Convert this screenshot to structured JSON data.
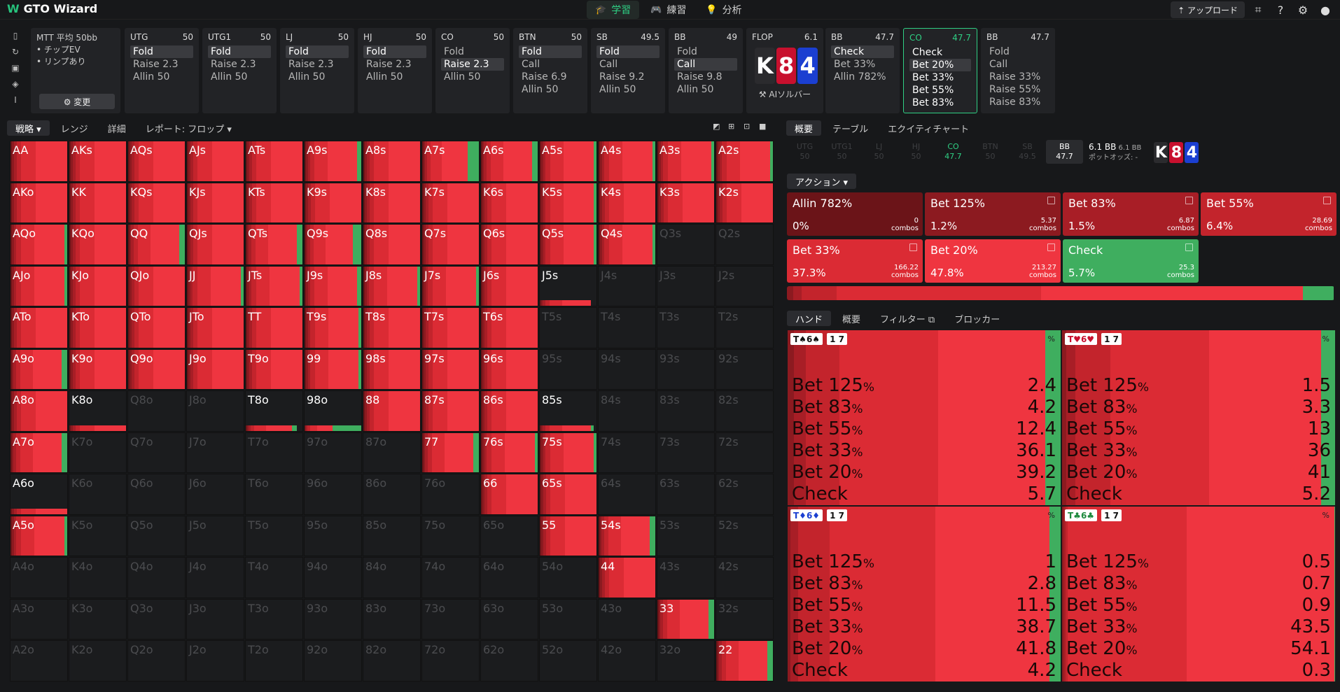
{
  "app": {
    "title": "GTO Wizard"
  },
  "nav": [
    {
      "label": "学習",
      "icon": "🎓"
    },
    {
      "label": "練習",
      "icon": "🎮"
    },
    {
      "label": "分析",
      "icon": "💡"
    }
  ],
  "topright": {
    "upload": "⇡ アップロード"
  },
  "mtt": {
    "title": "MTT  平均 50bb",
    "lines": [
      "• チップEV",
      "• リンプあり"
    ],
    "change": "⚙ 変更"
  },
  "positions": [
    {
      "pos": "UTG",
      "stack": "50",
      "actions": [
        "Fold",
        "Raise 2.3",
        "Allin 50"
      ],
      "sel": 0
    },
    {
      "pos": "UTG1",
      "stack": "50",
      "actions": [
        "Fold",
        "Raise 2.3",
        "Allin 50"
      ],
      "sel": 0
    },
    {
      "pos": "LJ",
      "stack": "50",
      "actions": [
        "Fold",
        "Raise 2.3",
        "Allin 50"
      ],
      "sel": 0
    },
    {
      "pos": "HJ",
      "stack": "50",
      "actions": [
        "Fold",
        "Raise 2.3",
        "Allin 50"
      ],
      "sel": 0
    },
    {
      "pos": "CO",
      "stack": "50",
      "actions": [
        "Fold",
        "Raise 2.3",
        "Allin 50"
      ],
      "sel": 1
    },
    {
      "pos": "BTN",
      "stack": "50",
      "actions": [
        "Fold",
        "Call",
        "Raise 6.9",
        "Allin 50"
      ],
      "sel": 0
    },
    {
      "pos": "SB",
      "stack": "49.5",
      "actions": [
        "Fold",
        "Call",
        "Raise 9.2",
        "Allin 50"
      ],
      "sel": 0
    },
    {
      "pos": "BB",
      "stack": "49",
      "actions": [
        "Fold",
        "Call",
        "Raise 9.8",
        "Allin 50"
      ],
      "sel": 1
    }
  ],
  "flop": {
    "label": "FLOP",
    "pot": "6.1",
    "cards": [
      {
        "r": "K",
        "c": "#2b2b2e"
      },
      {
        "r": "8",
        "c": "#c8102e"
      },
      {
        "r": "4",
        "c": "#1b3fd1"
      }
    ],
    "ai": "⚒ AIソルバー"
  },
  "postflop": [
    {
      "pos": "BB",
      "stack": "47.7",
      "actions": [
        "Check",
        "Bet 33%",
        "Allin 782%"
      ],
      "sel": 0,
      "active": false
    },
    {
      "pos": "CO",
      "stack": "47.7",
      "actions": [
        "Check",
        "Bet 20%",
        "Bet 33%",
        "Bet 55%",
        "Bet 83%"
      ],
      "sel": 1,
      "active": true
    },
    {
      "pos": "BB",
      "stack": "47.7",
      "actions": [
        "Fold",
        "Call",
        "Raise 33%",
        "Raise 55%",
        "Raise 83%"
      ],
      "sel": -1,
      "active": false
    }
  ],
  "lefttabs": [
    "戦略 ▾",
    "レンジ",
    "詳細",
    "レポート: フロップ ▾"
  ],
  "righttabs": [
    "概要",
    "テーブル",
    "エクイティチャート"
  ],
  "posrow": [
    {
      "p": "UTG",
      "s": "50"
    },
    {
      "p": "UTG1",
      "s": "50"
    },
    {
      "p": "LJ",
      "s": "50"
    },
    {
      "p": "HJ",
      "s": "50"
    },
    {
      "p": "CO",
      "s": "47.7"
    },
    {
      "p": "BTN",
      "s": "50"
    },
    {
      "p": "SB",
      "s": "49.5"
    },
    {
      "p": "BB",
      "s": "47.7"
    }
  ],
  "potinfo": {
    "main": "6.1 BB",
    "main2": "6.1 BB",
    "odds": "ポットオッズ: -"
  },
  "actiondrop": "アクション ▾",
  "actioncards": [
    {
      "name": "Allin 782%",
      "pct": "0%",
      "combos": "0",
      "color": "#6b1418"
    },
    {
      "name": "Bet 125%",
      "pct": "1.2%",
      "combos": "5.37",
      "color": "#8c1a20"
    },
    {
      "name": "Bet 83%",
      "pct": "1.5%",
      "combos": "6.87",
      "color": "#a81e26"
    },
    {
      "name": "Bet 55%",
      "pct": "6.4%",
      "combos": "28.69",
      "color": "#c3242c"
    },
    {
      "name": "Bet 33%",
      "pct": "37.3%",
      "combos": "166.22",
      "color": "#db2b34"
    },
    {
      "name": "Bet 20%",
      "pct": "47.8%",
      "combos": "213.27",
      "color": "#ef3540"
    },
    {
      "name": "Check",
      "pct": "5.7%",
      "combos": "25.3",
      "color": "#3fae5f"
    }
  ],
  "combos_label": "combos",
  "handtabs": [
    "ハンド",
    "概要",
    "フィルター ⧉",
    "ブロッカー"
  ],
  "hands": [
    {
      "badge": "T♠6♠",
      "vals": [
        "2.4",
        "4.2",
        "12.4",
        "36.1",
        "39.2",
        "5.7"
      ]
    },
    {
      "badge": "T♥6♥",
      "vals": [
        "1.5",
        "3.3",
        "13",
        "36",
        "41",
        "5.2"
      ]
    },
    {
      "badge": "T♦6♦",
      "vals": [
        "1",
        "2.8",
        "11.5",
        "38.7",
        "41.8",
        "4.2"
      ]
    },
    {
      "badge": "T♣6♣",
      "vals": [
        "0.5",
        "0.7",
        "0.9",
        "43.5",
        "54.1",
        "0.3"
      ]
    }
  ],
  "hand_actions": [
    "Bet 125",
    "Bet 83",
    "Bet 55",
    "Bet 33",
    "Bet 20",
    "Check"
  ],
  "hand_extra": "1 7",
  "percent": "%",
  "grid": {
    "ranks": [
      "A",
      "K",
      "Q",
      "J",
      "T",
      "9",
      "8",
      "7",
      "6",
      "5",
      "4",
      "3",
      "2"
    ],
    "filled": [
      "AA",
      "AKs",
      "AQs",
      "AJs",
      "ATs",
      "A9s",
      "A8s",
      "A7s",
      "A6s",
      "A5s",
      "A4s",
      "A3s",
      "A2s",
      "AKo",
      "KK",
      "KQs",
      "KJs",
      "KTs",
      "K9s",
      "K8s",
      "K7s",
      "K6s",
      "K5s",
      "K4s",
      "K3s",
      "K2s",
      "AQo",
      "KQo",
      "QQ",
      "QJs",
      "QTs",
      "Q9s",
      "Q8s",
      "Q7s",
      "Q6s",
      "Q5s",
      "Q4s",
      "AJo",
      "KJo",
      "QJo",
      "JJ",
      "JTs",
      "J9s",
      "J8s",
      "J7s",
      "J6s",
      "ATo",
      "KTo",
      "QTo",
      "JTo",
      "TT",
      "T9s",
      "T8s",
      "T7s",
      "T6s",
      "A9o",
      "K9o",
      "Q9o",
      "J9o",
      "T9o",
      "99",
      "98s",
      "97s",
      "96s",
      "A8o",
      "88",
      "87s",
      "86s",
      "A7o",
      "77",
      "76s",
      "75s",
      "66",
      "65s",
      "A5o",
      "55",
      "54s",
      "44",
      "33",
      "22"
    ],
    "partial": {
      "J5s": 0.9,
      "K8o": 1,
      "T8o": 0.9,
      "98o": 1,
      "85s": 0.95,
      "A6o": 1
    },
    "green": {
      "A9s": 0.07,
      "A7s": 0.2,
      "A6s": 0.1,
      "A5s": 0.05,
      "A4s": 0.05,
      "A3s": 0.05,
      "A2s": 0.05,
      "Q5s": 0.05,
      "Q4s": 0.05,
      "Q9s": 0.15,
      "QTs": 0.1,
      "QQ": 0.1,
      "K5s": 0.05,
      "A9o": 0.1,
      "A7o": 0.1,
      "A5o": 0.05,
      "J9s": 0.07,
      "JTs": 0.05,
      "T9s": 0.05,
      "JJ": 0.05,
      "99": 0.05,
      "77": 0.1,
      "76s": 0.05,
      "75s": 0.05,
      "54s": 0.1,
      "33": 0.1,
      "22": 0.1,
      "85s": 0.05,
      "98o": 0.5,
      "T8o": 0.1,
      "J7s": 0.05,
      "J8s": 0.05,
      "AQo": 0.05,
      "AJo": 0.05
    }
  }
}
